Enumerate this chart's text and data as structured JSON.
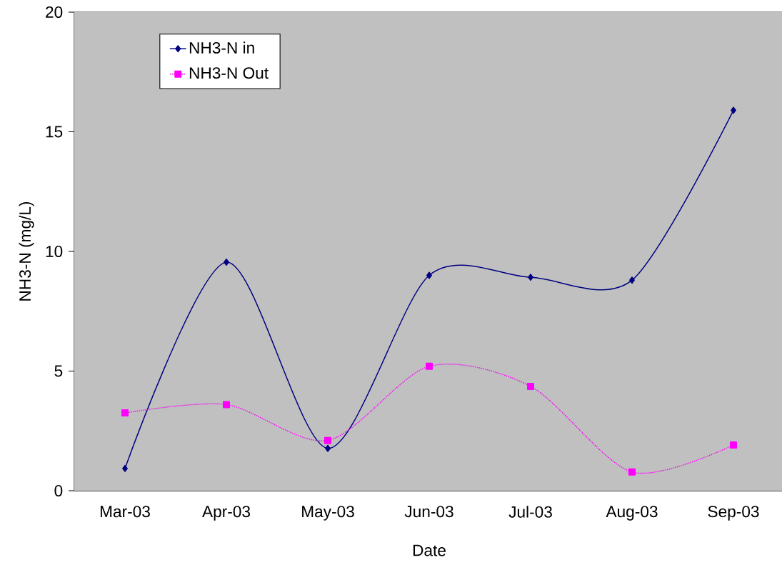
{
  "chart_data": {
    "type": "line",
    "xlabel": "Date",
    "ylabel": "NH3-N (mg/L)",
    "categories": [
      "Mar-03",
      "Apr-03",
      "May-03",
      "Jun-03",
      "Jul-03",
      "Aug-03",
      "Sep-03"
    ],
    "series": [
      {
        "name": "NH3-N in",
        "color": "#000080",
        "marker": "diamond",
        "line_style": "solid",
        "values": [
          0.93,
          9.55,
          1.77,
          9.0,
          8.92,
          8.8,
          15.9
        ]
      },
      {
        "name": "NH3-N Out",
        "color": "#ff00ff",
        "marker": "square",
        "line_style": "dotted",
        "values": [
          3.25,
          3.6,
          2.1,
          5.2,
          4.36,
          0.78,
          1.91
        ]
      }
    ],
    "ylim": [
      0,
      20
    ],
    "yticks": [
      0,
      5,
      10,
      15,
      20
    ],
    "grid": "y",
    "legend": "top left"
  }
}
